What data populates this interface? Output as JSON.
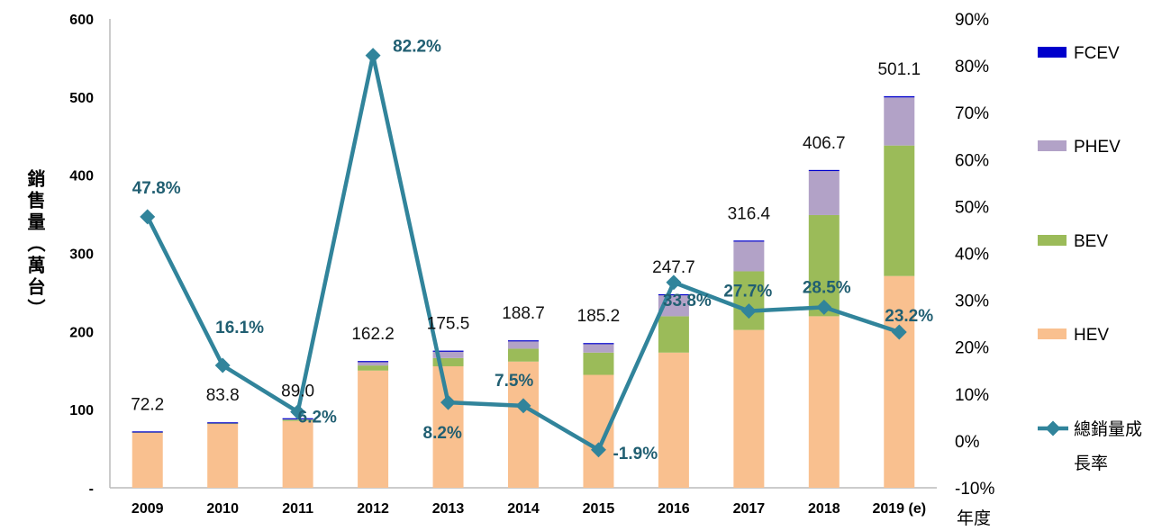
{
  "chart_data": {
    "type": "bar",
    "subtype": "stacked-bar-with-line",
    "categories": [
      "2009",
      "2010",
      "2011",
      "2012",
      "2013",
      "2014",
      "2015",
      "2016",
      "2017",
      "2018",
      "2019 (e)"
    ],
    "series": [
      {
        "name": "HEV",
        "color": "#f9c08f",
        "values": [
          71.5,
          82.5,
          85.5,
          150.0,
          155.5,
          161.5,
          144.5,
          173.0,
          202.0,
          219.5,
          271.0
        ]
      },
      {
        "name": "BEV",
        "color": "#9bbb59",
        "values": [
          0.2,
          0.5,
          1.5,
          6.5,
          10.5,
          16.5,
          28.5,
          46.5,
          75.0,
          129.5,
          167.0
        ]
      },
      {
        "name": "PHEV",
        "color": "#b2a2c7",
        "values": [
          0.3,
          0.6,
          1.7,
          5.2,
          8.7,
          10.0,
          11.5,
          27.5,
          38.5,
          56.5,
          61.5
        ]
      },
      {
        "name": "FCEV",
        "color": "#0000cc",
        "values": [
          0.2,
          0.2,
          0.3,
          0.5,
          0.8,
          0.7,
          0.7,
          0.7,
          0.9,
          1.2,
          1.6
        ]
      }
    ],
    "totals": [
      "72.2",
      "83.8",
      "89.0",
      "162.2",
      "175.5",
      "188.7",
      "185.2",
      "247.7",
      "316.4",
      "406.7",
      "501.1"
    ],
    "line_series": {
      "name": "總銷量成長率",
      "color": "#31849b",
      "values": [
        47.8,
        16.1,
        6.2,
        82.2,
        8.2,
        7.5,
        -1.9,
        33.8,
        27.7,
        28.5,
        23.2
      ],
      "labels": [
        "47.8%",
        "16.1%",
        "6.2%",
        "82.2%",
        "8.2%",
        "7.5%",
        "-1.9%",
        "33.8%",
        "27.7%",
        "28.5%",
        "23.2%"
      ]
    },
    "ylabel": "銷售量（萬台）",
    "xlabel": "年度",
    "ylim": [
      0,
      600
    ],
    "y_ticks": [
      "-",
      "100",
      "200",
      "300",
      "400",
      "500",
      "600"
    ],
    "y2lim": [
      -10,
      90
    ],
    "y2_ticks": [
      "-10%",
      "0%",
      "10%",
      "20%",
      "30%",
      "40%",
      "50%",
      "60%",
      "70%",
      "80%",
      "90%"
    ],
    "legend_position": "right",
    "legend": [
      "FCEV",
      "PHEV",
      "BEV",
      "HEV"
    ],
    "legend_line_label": [
      "總銷量成",
      "長率"
    ],
    "grid": false
  }
}
